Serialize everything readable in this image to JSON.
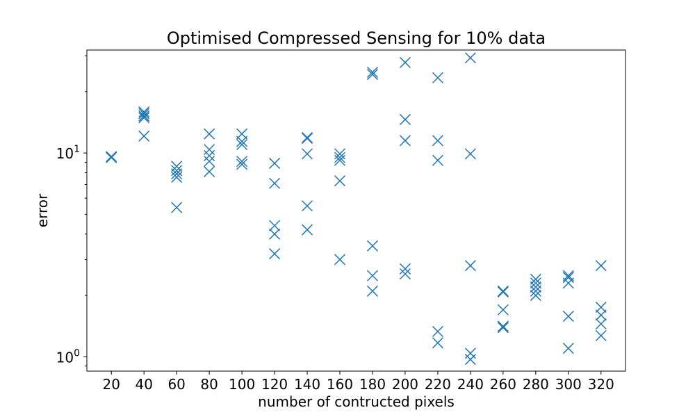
{
  "chart_data": {
    "type": "scatter",
    "title": "Optimised Compressed Sensing for 10% data",
    "xlabel": "number of contructed pixels",
    "ylabel": "error",
    "yscale": "log",
    "ylim": [
      0.85,
      32
    ],
    "x_ticks": [
      20,
      40,
      60,
      80,
      100,
      120,
      140,
      160,
      180,
      200,
      220,
      240,
      260,
      280,
      300,
      320
    ],
    "y_ticks": [
      {
        "base": "10",
        "exp": "0",
        "value": 1
      },
      {
        "base": "10",
        "exp": "1",
        "value": 10
      }
    ],
    "marker": "x",
    "color": "#1f77b4",
    "points": [
      {
        "x": 20,
        "y": 9.5
      },
      {
        "x": 20,
        "y": 9.6
      },
      {
        "x": 20,
        "y": 9.5
      },
      {
        "x": 40,
        "y": 15.9
      },
      {
        "x": 40,
        "y": 15.6
      },
      {
        "x": 40,
        "y": 15.2
      },
      {
        "x": 40,
        "y": 14.9
      },
      {
        "x": 40,
        "y": 12.1
      },
      {
        "x": 60,
        "y": 8.6
      },
      {
        "x": 60,
        "y": 8.2
      },
      {
        "x": 60,
        "y": 7.9
      },
      {
        "x": 60,
        "y": 7.6
      },
      {
        "x": 60,
        "y": 5.4
      },
      {
        "x": 80,
        "y": 12.4
      },
      {
        "x": 80,
        "y": 10.4
      },
      {
        "x": 80,
        "y": 9.7
      },
      {
        "x": 80,
        "y": 9.1
      },
      {
        "x": 80,
        "y": 8.1
      },
      {
        "x": 100,
        "y": 12.4
      },
      {
        "x": 100,
        "y": 11.4
      },
      {
        "x": 100,
        "y": 11.0
      },
      {
        "x": 100,
        "y": 9.1
      },
      {
        "x": 100,
        "y": 8.8
      },
      {
        "x": 120,
        "y": 8.9
      },
      {
        "x": 120,
        "y": 7.1
      },
      {
        "x": 120,
        "y": 4.4
      },
      {
        "x": 120,
        "y": 4.0
      },
      {
        "x": 120,
        "y": 3.2
      },
      {
        "x": 140,
        "y": 11.9
      },
      {
        "x": 140,
        "y": 11.8
      },
      {
        "x": 140,
        "y": 9.9
      },
      {
        "x": 140,
        "y": 5.5
      },
      {
        "x": 140,
        "y": 4.2
      },
      {
        "x": 160,
        "y": 9.9
      },
      {
        "x": 160,
        "y": 9.5
      },
      {
        "x": 160,
        "y": 9.2
      },
      {
        "x": 160,
        "y": 7.3
      },
      {
        "x": 160,
        "y": 3.0
      },
      {
        "x": 180,
        "y": 24.9
      },
      {
        "x": 180,
        "y": 24.3
      },
      {
        "x": 180,
        "y": 3.5
      },
      {
        "x": 180,
        "y": 2.5
      },
      {
        "x": 180,
        "y": 2.1
      },
      {
        "x": 200,
        "y": 27.8
      },
      {
        "x": 200,
        "y": 14.6
      },
      {
        "x": 200,
        "y": 11.5
      },
      {
        "x": 200,
        "y": 2.7
      },
      {
        "x": 200,
        "y": 2.55
      },
      {
        "x": 220,
        "y": 23.4
      },
      {
        "x": 220,
        "y": 11.5
      },
      {
        "x": 220,
        "y": 9.2
      },
      {
        "x": 220,
        "y": 1.33
      },
      {
        "x": 220,
        "y": 1.17
      },
      {
        "x": 240,
        "y": 29.3
      },
      {
        "x": 240,
        "y": 9.9
      },
      {
        "x": 240,
        "y": 2.8
      },
      {
        "x": 240,
        "y": 1.04
      },
      {
        "x": 240,
        "y": 0.97
      },
      {
        "x": 260,
        "y": 2.1
      },
      {
        "x": 260,
        "y": 2.08
      },
      {
        "x": 260,
        "y": 1.7
      },
      {
        "x": 260,
        "y": 1.41
      },
      {
        "x": 260,
        "y": 1.39
      },
      {
        "x": 280,
        "y": 2.4
      },
      {
        "x": 280,
        "y": 2.3
      },
      {
        "x": 280,
        "y": 2.2
      },
      {
        "x": 280,
        "y": 2.1
      },
      {
        "x": 280,
        "y": 2.0
      },
      {
        "x": 300,
        "y": 2.5
      },
      {
        "x": 300,
        "y": 2.45
      },
      {
        "x": 300,
        "y": 2.3
      },
      {
        "x": 300,
        "y": 1.58
      },
      {
        "x": 300,
        "y": 1.1
      },
      {
        "x": 320,
        "y": 2.8
      },
      {
        "x": 320,
        "y": 1.75
      },
      {
        "x": 320,
        "y": 1.6
      },
      {
        "x": 320,
        "y": 1.45
      },
      {
        "x": 320,
        "y": 1.27
      }
    ]
  }
}
